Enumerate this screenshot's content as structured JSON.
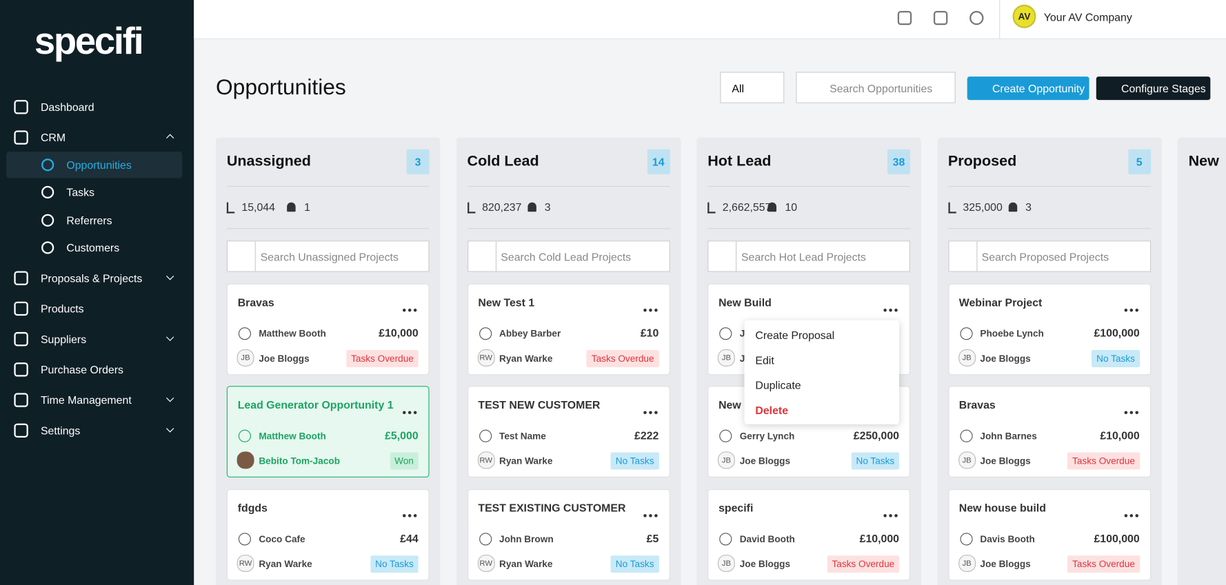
{
  "sidebar": {
    "logo": "specifi",
    "nav": [
      {
        "label": "Dashboard"
      },
      {
        "label": "CRM",
        "children": [
          "Opportunities",
          "Tasks",
          "Referrers",
          "Customers"
        ]
      },
      {
        "label": "Proposals & Projects"
      },
      {
        "label": "Products"
      },
      {
        "label": "Suppliers"
      },
      {
        "label": "Purchase Orders"
      },
      {
        "label": "Time Management"
      },
      {
        "label": "Settings"
      }
    ]
  },
  "header": {
    "avatar": "AV",
    "company": "Your AV Company"
  },
  "toolbar": {
    "title": "Opportunities",
    "filter": "All",
    "search": "Search Opportunities",
    "create": "Create Opportunity",
    "configure": "Configure Stages"
  },
  "columns": [
    {
      "name": "Unassigned",
      "count": "3",
      "value": "15,044",
      "alerts": "1",
      "search": "Search Unassigned Projects",
      "cards": [
        {
          "title": "Bravas",
          "contact": "Matthew Booth",
          "amount": "£10,000",
          "initials": "JB",
          "owner": "Joe Bloggs",
          "status": "Tasks Overdue"
        },
        {
          "title": "Lead Generator Opportunity 1",
          "contact": "Matthew Booth",
          "amount": "£5,000",
          "owner": "Bebito Tom-Jacob",
          "status": "Won"
        },
        {
          "title": "fdgds",
          "contact": "Coco Cafe",
          "amount": "£44",
          "initials": "RW",
          "owner": "Ryan Warke",
          "status": "No Tasks"
        }
      ]
    },
    {
      "name": "Cold Lead",
      "count": "14",
      "value": "820,237",
      "alerts": "3",
      "search": "Search Cold Lead Projects",
      "cards": [
        {
          "title": "New Test 1",
          "contact": "Abbey Barber",
          "amount": "£10",
          "initials": "RW",
          "owner": "Ryan Warke",
          "status": "Tasks Overdue"
        },
        {
          "title": "TEST NEW CUSTOMER",
          "contact": "Test Name",
          "amount": "£222",
          "initials": "RW",
          "owner": "Ryan Warke",
          "status": "No Tasks"
        },
        {
          "title": "TEST EXISTING CUSTOMER",
          "contact": "John Brown",
          "amount": "£5",
          "initials": "RW",
          "owner": "Ryan Warke",
          "status": "No Tasks"
        }
      ]
    },
    {
      "name": "Hot Lead",
      "count": "38",
      "value": "2,662,557",
      "alerts": "10",
      "search": "Search Hot Lead Projects",
      "cards": [
        {
          "title": "New Build",
          "contact": "J",
          "initials": "JB",
          "owner": "J"
        },
        {
          "title": "New",
          "contact": "Gerry Lynch",
          "amount": "£250,000",
          "initials": "JB",
          "owner": "Joe Bloggs",
          "status": "No Tasks"
        },
        {
          "title": "specifi",
          "contact": "David Booth",
          "amount": "£10,000",
          "initials": "JB",
          "owner": "Joe Bloggs",
          "status": "Tasks Overdue"
        }
      ]
    },
    {
      "name": "Proposed",
      "count": "5",
      "value": "325,000",
      "alerts": "3",
      "search": "Search Proposed Projects",
      "cards": [
        {
          "title": "Webinar Project",
          "contact": "Phoebe Lynch",
          "amount": "£100,000",
          "initials": "JB",
          "owner": "Joe Bloggs",
          "status": "No Tasks"
        },
        {
          "title": "Bravas",
          "contact": "John Barnes",
          "amount": "£10,000",
          "initials": "JB",
          "owner": "Joe Bloggs",
          "status": "Tasks Overdue"
        },
        {
          "title": "New house build",
          "contact": "Davis Booth",
          "amount": "£100,000",
          "initials": "JB",
          "owner": "Joe Bloggs",
          "status": "Tasks Overdue"
        }
      ]
    },
    {
      "name": "New"
    }
  ],
  "menu": [
    "Create Proposal",
    "Edit",
    "Duplicate",
    "Delete"
  ]
}
